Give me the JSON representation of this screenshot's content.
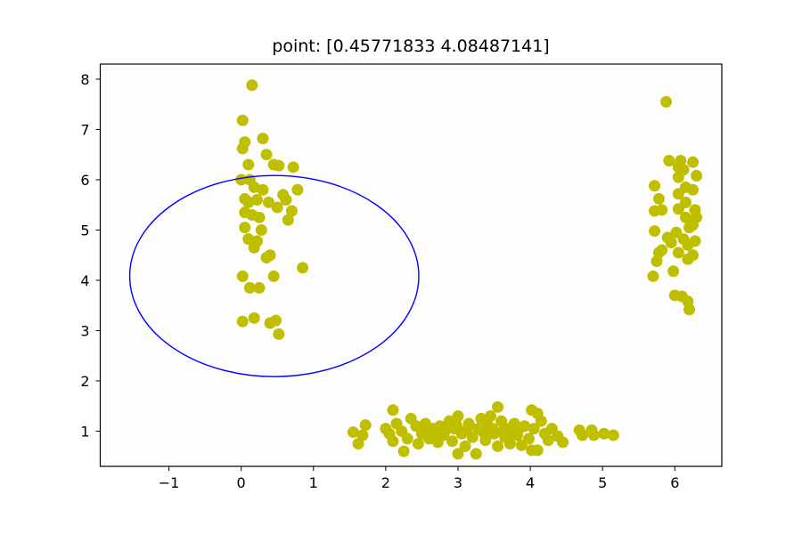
{
  "chart_data": {
    "type": "scatter",
    "title": "point: [0.45771833 4.08487141]",
    "xlabel": "",
    "ylabel": "",
    "xlim": [
      -1.95,
      6.65
    ],
    "ylim": [
      0.3,
      8.3
    ],
    "grid": false,
    "xticks": [
      -1,
      0,
      1,
      2,
      3,
      4,
      5,
      6
    ],
    "xtick_labels": [
      "−1",
      "0",
      "1",
      "2",
      "3",
      "4",
      "5",
      "6"
    ],
    "yticks": [
      1,
      2,
      3,
      4,
      5,
      6,
      7,
      8
    ],
    "ytick_labels": [
      "1",
      "2",
      "3",
      "4",
      "5",
      "6",
      "7",
      "8"
    ],
    "point_color": "#bfbf00",
    "ellipse": {
      "center": [
        0.45771833,
        4.08487141
      ],
      "width": 4.0,
      "height": 4.0,
      "color": "#0000ff"
    },
    "series": [
      {
        "points": [
          [
            0.15,
            7.88
          ],
          [
            0.02,
            7.18
          ],
          [
            0.3,
            6.82
          ],
          [
            0.02,
            6.62
          ],
          [
            0.05,
            6.75
          ],
          [
            0.35,
            6.5
          ],
          [
            0.1,
            6.3
          ],
          [
            0.45,
            6.3
          ],
          [
            0.52,
            6.28
          ],
          [
            0.72,
            6.25
          ],
          [
            0.0,
            6.0
          ],
          [
            0.12,
            6.0
          ],
          [
            0.18,
            5.85
          ],
          [
            0.3,
            5.8
          ],
          [
            0.78,
            5.8
          ],
          [
            0.58,
            5.7
          ],
          [
            0.05,
            5.62
          ],
          [
            0.1,
            5.55
          ],
          [
            0.22,
            5.6
          ],
          [
            0.62,
            5.6
          ],
          [
            0.38,
            5.55
          ],
          [
            0.5,
            5.45
          ],
          [
            0.7,
            5.38
          ],
          [
            0.05,
            5.35
          ],
          [
            0.15,
            5.3
          ],
          [
            0.25,
            5.25
          ],
          [
            0.65,
            5.2
          ],
          [
            0.05,
            5.05
          ],
          [
            0.28,
            5.0
          ],
          [
            0.1,
            4.82
          ],
          [
            0.22,
            4.78
          ],
          [
            0.18,
            4.65
          ],
          [
            0.4,
            4.5
          ],
          [
            0.35,
            4.45
          ],
          [
            0.85,
            4.25
          ],
          [
            0.02,
            4.08
          ],
          [
            0.45,
            4.08
          ],
          [
            0.12,
            3.85
          ],
          [
            0.25,
            3.85
          ],
          [
            0.18,
            3.25
          ],
          [
            0.02,
            3.18
          ],
          [
            0.4,
            3.15
          ],
          [
            0.48,
            3.2
          ],
          [
            0.52,
            2.93
          ],
          [
            5.88,
            7.55
          ],
          [
            5.92,
            6.38
          ],
          [
            6.08,
            6.38
          ],
          [
            6.25,
            6.35
          ],
          [
            6.05,
            6.25
          ],
          [
            6.12,
            6.2
          ],
          [
            6.3,
            6.08
          ],
          [
            6.05,
            6.05
          ],
          [
            5.72,
            5.88
          ],
          [
            6.15,
            5.85
          ],
          [
            6.25,
            5.8
          ],
          [
            6.05,
            5.72
          ],
          [
            5.78,
            5.62
          ],
          [
            6.15,
            5.55
          ],
          [
            6.28,
            5.4
          ],
          [
            6.05,
            5.42
          ],
          [
            5.72,
            5.38
          ],
          [
            5.82,
            5.4
          ],
          [
            6.15,
            5.25
          ],
          [
            6.3,
            5.25
          ],
          [
            6.25,
            5.1
          ],
          [
            6.2,
            5.05
          ],
          [
            5.72,
            4.98
          ],
          [
            6.02,
            4.95
          ],
          [
            5.9,
            4.85
          ],
          [
            6.12,
            4.82
          ],
          [
            6.28,
            4.78
          ],
          [
            5.95,
            4.75
          ],
          [
            6.18,
            4.7
          ],
          [
            5.82,
            4.6
          ],
          [
            6.05,
            4.55
          ],
          [
            5.78,
            4.55
          ],
          [
            6.25,
            4.5
          ],
          [
            6.18,
            4.42
          ],
          [
            5.75,
            4.38
          ],
          [
            5.98,
            4.18
          ],
          [
            5.7,
            4.08
          ],
          [
            6.0,
            3.7
          ],
          [
            6.1,
            3.68
          ],
          [
            6.18,
            3.58
          ],
          [
            6.2,
            3.42
          ],
          [
            2.1,
            1.42
          ],
          [
            3.55,
            1.48
          ],
          [
            4.02,
            1.42
          ],
          [
            4.1,
            1.35
          ],
          [
            2.0,
            1.05
          ],
          [
            1.72,
            1.12
          ],
          [
            1.55,
            0.98
          ],
          [
            1.68,
            0.92
          ],
          [
            1.62,
            0.75
          ],
          [
            2.05,
            0.95
          ],
          [
            2.1,
            0.8
          ],
          [
            2.15,
            1.15
          ],
          [
            2.22,
            1.0
          ],
          [
            2.25,
            0.6
          ],
          [
            2.3,
            0.85
          ],
          [
            2.35,
            1.25
          ],
          [
            2.42,
            1.1
          ],
          [
            2.45,
            0.75
          ],
          [
            2.5,
            0.95
          ],
          [
            2.55,
            1.15
          ],
          [
            2.6,
            0.85
          ],
          [
            2.65,
            1.05
          ],
          [
            2.72,
            0.78
          ],
          [
            2.75,
            1.1
          ],
          [
            2.8,
            0.92
          ],
          [
            2.88,
            1.2
          ],
          [
            2.92,
            0.8
          ],
          [
            2.95,
            1.05
          ],
          [
            3.0,
            0.55
          ],
          [
            3.0,
            1.3
          ],
          [
            3.05,
            0.95
          ],
          [
            3.1,
            0.7
          ],
          [
            3.15,
            1.15
          ],
          [
            3.2,
            0.88
          ],
          [
            3.25,
            0.55
          ],
          [
            3.28,
            1.05
          ],
          [
            3.32,
            1.25
          ],
          [
            3.38,
            0.82
          ],
          [
            3.42,
            1.1
          ],
          [
            3.45,
            1.3
          ],
          [
            3.5,
            0.95
          ],
          [
            3.55,
            0.7
          ],
          [
            3.6,
            1.2
          ],
          [
            3.65,
            0.88
          ],
          [
            3.7,
            1.05
          ],
          [
            3.72,
            0.75
          ],
          [
            3.78,
            1.15
          ],
          [
            3.82,
            0.92
          ],
          [
            3.88,
            0.72
          ],
          [
            3.92,
            1.1
          ],
          [
            3.98,
            0.85
          ],
          [
            4.02,
            0.62
          ],
          [
            4.05,
            1.05
          ],
          [
            4.1,
            0.62
          ],
          [
            4.15,
            1.2
          ],
          [
            4.2,
            0.95
          ],
          [
            4.25,
            0.82
          ],
          [
            4.3,
            1.05
          ],
          [
            4.38,
            0.9
          ],
          [
            4.45,
            0.78
          ],
          [
            4.68,
            1.02
          ],
          [
            4.72,
            0.92
          ],
          [
            4.85,
            1.02
          ],
          [
            4.88,
            0.92
          ],
          [
            5.02,
            0.95
          ],
          [
            5.15,
            0.92
          ],
          [
            2.58,
            1.02
          ],
          [
            2.68,
            0.95
          ],
          [
            2.82,
            1.0
          ],
          [
            2.98,
            1.12
          ],
          [
            3.12,
            1.02
          ],
          [
            3.35,
            0.98
          ],
          [
            3.48,
            1.05
          ],
          [
            3.62,
            1.0
          ],
          [
            3.75,
            0.95
          ],
          [
            3.85,
            1.05
          ]
        ]
      }
    ]
  }
}
